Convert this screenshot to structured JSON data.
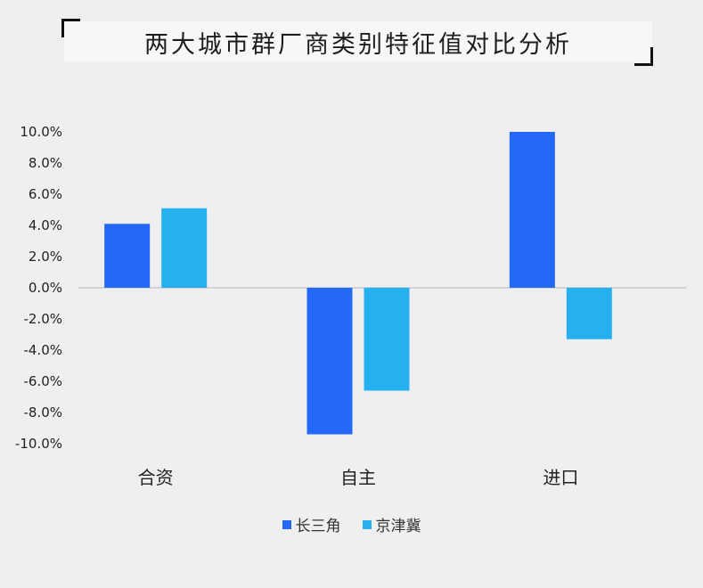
{
  "title": "两大城市群厂商类别特征值对比分析",
  "colors": {
    "series0": "#2468f7",
    "series1": "#27b0ef",
    "zero_line": "#c9c9cc"
  },
  "chart_data": {
    "type": "bar",
    "categories": [
      "合资",
      "自主",
      "进口"
    ],
    "series": [
      {
        "name": "长三角",
        "values": [
          4.1,
          -9.4,
          10.0
        ]
      },
      {
        "name": "京津冀",
        "values": [
          5.1,
          -6.6,
          -3.3
        ]
      }
    ],
    "yticks": [
      "10.0%",
      "8.0%",
      "6.0%",
      "4.0%",
      "2.0%",
      "0.0%",
      "-2.0%",
      "-4.0%",
      "-6.0%",
      "-8.0%",
      "-10.0%"
    ],
    "ylim": [
      -10,
      10
    ],
    "ytick_step": 2,
    "grid": false,
    "legend_position": "bottom"
  }
}
